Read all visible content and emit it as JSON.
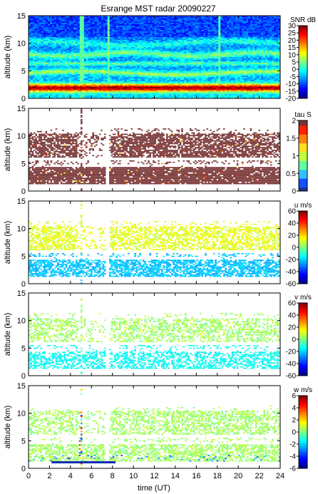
{
  "title": "Esrange MST radar 20090227",
  "xlabel": "time (UT)",
  "ylabel": "altitude (km)",
  "chart_data": [
    {
      "type": "heatmap",
      "title": "Esrange MST radar 20090227",
      "ylabel": "altitude (km)",
      "xlim": [
        0,
        24
      ],
      "ylim": [
        0,
        15
      ],
      "yticks": [
        "0",
        "5",
        "10",
        "15"
      ],
      "colorbar": {
        "label": "SNR dB",
        "range": [
          -20,
          30
        ],
        "ticks": [
          "30",
          "25",
          "20",
          "15",
          "10",
          "5",
          "0",
          "-5",
          "-10",
          "-15",
          "-20"
        ]
      },
      "description_values": {
        "strong_echo_layer_km": [
          1,
          3
        ],
        "secondary_layers_km": [
          4.5,
          6,
          8,
          10
        ]
      }
    },
    {
      "type": "heatmap",
      "ylabel": "altitude (km)",
      "xlim": [
        0,
        24
      ],
      "ylim": [
        0,
        15
      ],
      "yticks": [
        "0",
        "5",
        "10",
        "15"
      ],
      "colorbar": {
        "label": "tau S",
        "range": [
          0,
          2
        ],
        "ticks": [
          "2",
          "1.5",
          "1",
          "0.5",
          "0"
        ]
      },
      "dominant_value": 2
    },
    {
      "type": "heatmap",
      "ylabel": "altitude (km)",
      "xlim": [
        0,
        24
      ],
      "ylim": [
        0,
        15
      ],
      "yticks": [
        "0",
        "5",
        "10",
        "15"
      ],
      "colorbar": {
        "label": "u m/s",
        "range": [
          -60,
          60
        ],
        "ticks": [
          "60",
          "40",
          "20",
          "0",
          "-20",
          "-40",
          "-60"
        ]
      },
      "upper_layer_value": 15,
      "lower_layer_value": -25
    },
    {
      "type": "heatmap",
      "ylabel": "altitude (km)",
      "xlim": [
        0,
        24
      ],
      "ylim": [
        0,
        15
      ],
      "yticks": [
        "0",
        "5",
        "10",
        "15"
      ],
      "colorbar": {
        "label": "v m/s",
        "range": [
          -60,
          60
        ],
        "ticks": [
          "60",
          "40",
          "20",
          "0",
          "-20",
          "-40",
          "-60"
        ]
      },
      "upper_layer_value": 5,
      "lower_layer_value": -15
    },
    {
      "type": "heatmap",
      "ylabel": "altitude (km)",
      "xlabel": "time (UT)",
      "xlim": [
        0,
        24
      ],
      "ylim": [
        0,
        15
      ],
      "xticks": [
        "0",
        "2",
        "4",
        "6",
        "8",
        "10",
        "12",
        "14",
        "16",
        "18",
        "20",
        "22",
        "24"
      ],
      "yticks": [
        "0",
        "5",
        "10",
        "15"
      ],
      "colorbar": {
        "label": "w m/s",
        "range": [
          -6,
          6
        ],
        "ticks": [
          "6",
          "4",
          "2",
          "0",
          "-2",
          "-4",
          "-6"
        ]
      },
      "dominant_value": 0.5
    }
  ],
  "colors": {
    "jet": [
      "#00008f",
      "#0000ff",
      "#0070ff",
      "#00dfff",
      "#50ffaf",
      "#bfff40",
      "#ffdf00",
      "#ff7000",
      "#ff0000",
      "#8f0000"
    ],
    "tau": [
      "#203090",
      "#1050ff",
      "#30c0ff",
      "#60ffa0",
      "#c0ff40",
      "#ffe020",
      "#ff8010",
      "#ff2000",
      "#783434"
    ]
  }
}
